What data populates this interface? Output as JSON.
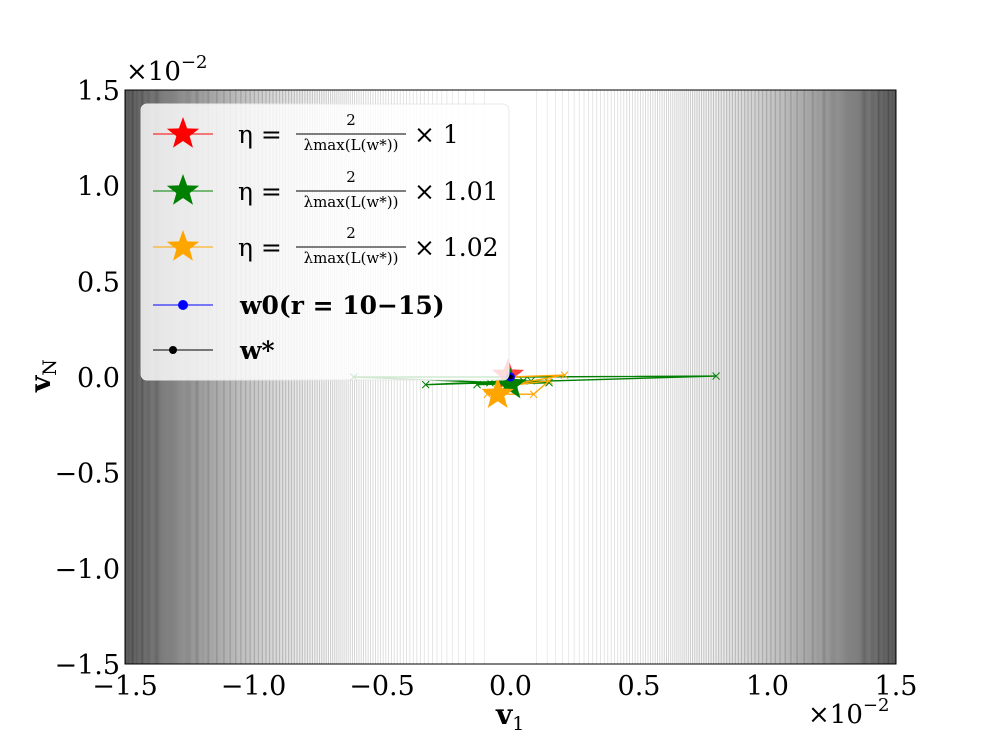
{
  "chart_data": {
    "type": "line",
    "xlabel": "v",
    "xlabel_sub": "1",
    "ylabel": "v",
    "ylabel_sub": "N",
    "xlim": [
      -0.015,
      0.015
    ],
    "ylim": [
      -0.015,
      0.015
    ],
    "x_ticks": [
      "−1.5",
      "−1.0",
      "−0.5",
      "0.0",
      "0.5",
      "1.0",
      "1.5"
    ],
    "y_ticks": [
      "1.5",
      "1.0",
      "0.5",
      "0.0",
      "−0.5",
      "−1.0",
      "−1.5"
    ],
    "x_scale_label": "×10",
    "x_scale_exp": "−2",
    "y_scale_label": "×10",
    "y_scale_exp": "−2",
    "background": "contour lines of the loss, dense vertical lines that are sparse near v1 = 0 and dense toward |v1| = 0.015",
    "grid": false,
    "legend_position": "upper-left",
    "series": [
      {
        "name_eta": "η =",
        "name_num": "2",
        "name_den": "λmax(L(w*))",
        "name_mult": "× 1",
        "color": "#ff0000",
        "marker": "star",
        "x": [
          0.0,
          0.0
        ],
        "y": [
          0.0,
          0.0
        ]
      },
      {
        "name_eta": "η =",
        "name_num": "2",
        "name_den": "λmax(L(w*))",
        "name_mult": "× 1.01",
        "color": "#008000",
        "marker": "star",
        "x": [
          0.0,
          0.008,
          -0.0033,
          0.0,
          0.0015,
          -0.0013,
          0.0008,
          -0.0008,
          0.0005,
          -0.0004,
          -0.0061,
          0.0
        ],
        "y": [
          0.0,
          5e-05,
          -0.0004,
          -0.0002,
          -0.0003,
          -0.0004,
          -0.0002,
          -0.0003,
          -0.0002,
          -0.0003,
          0.0,
          0.0
        ]
      },
      {
        "name_eta": "η =",
        "name_num": "2",
        "name_den": "λmax(L(w*))",
        "name_mult": "× 1.02",
        "color": "#ffa500",
        "marker": "star",
        "x": [
          0.0,
          0.0021,
          -0.0004,
          0.0015,
          0.0009,
          -0.0009
        ],
        "y": [
          0.0,
          0.0001,
          -0.0005,
          -0.0002,
          -0.0009,
          -0.0009
        ]
      },
      {
        "name": "w0(r = 10−15)",
        "color": "#0000ff",
        "marker": "dot",
        "x": [
          0.0
        ],
        "y": [
          0.0
        ]
      },
      {
        "name": "w*",
        "color": "#000000",
        "marker": "dot",
        "x": [
          0.0
        ],
        "y": [
          0.0
        ]
      }
    ]
  }
}
